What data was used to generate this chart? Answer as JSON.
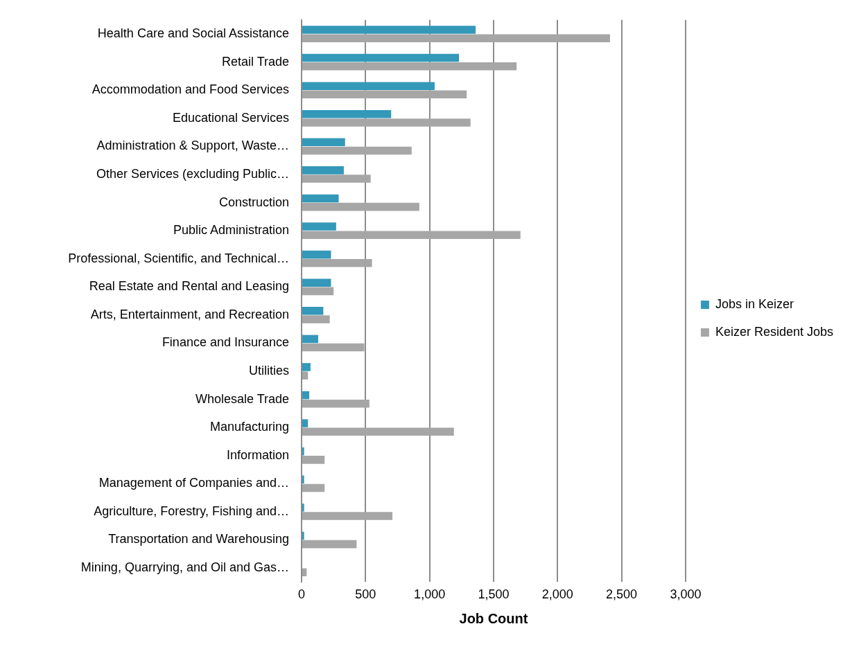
{
  "chart_data": {
    "type": "bar",
    "orientation": "horizontal",
    "xlabel": "Job Count",
    "categories": [
      "Health Care and Social Assistance",
      "Retail Trade",
      "Accommodation and Food Services",
      "Educational Services",
      "Administration & Support, Waste…",
      "Other Services (excluding Public…",
      "Construction",
      "Public Administration",
      "Professional, Scientific, and Technical…",
      "Real Estate and Rental and Leasing",
      "Arts, Entertainment, and Recreation",
      "Finance and Insurance",
      "Utilities",
      "Wholesale Trade",
      "Manufacturing",
      "Information",
      "Management of Companies and…",
      "Agriculture, Forestry, Fishing and…",
      "Transportation and Warehousing",
      "Mining, Quarrying, and Oil and Gas…"
    ],
    "series": [
      {
        "name": "Jobs in Keizer",
        "color": "#3498b9",
        "values": [
          1360,
          1230,
          1040,
          700,
          340,
          330,
          290,
          270,
          230,
          230,
          170,
          130,
          70,
          60,
          50,
          20,
          20,
          20,
          20,
          0
        ]
      },
      {
        "name": "Keizer Resident Jobs",
        "color": "#a6a6a6",
        "values": [
          2410,
          1680,
          1290,
          1320,
          860,
          540,
          920,
          1710,
          550,
          250,
          220,
          490,
          50,
          530,
          1190,
          180,
          180,
          710,
          430,
          40
        ]
      }
    ],
    "xlim": [
      0,
      3000
    ],
    "xticks": [
      {
        "value": 0,
        "label": "0"
      },
      {
        "value": 500,
        "label": "500"
      },
      {
        "value": 1000,
        "label": "1,000"
      },
      {
        "value": 1500,
        "label": "1,500"
      },
      {
        "value": 2000,
        "label": "2,000"
      },
      {
        "value": 2500,
        "label": "2,500"
      },
      {
        "value": 3000,
        "label": "3,000"
      }
    ],
    "grid": "x",
    "legend": "right"
  }
}
